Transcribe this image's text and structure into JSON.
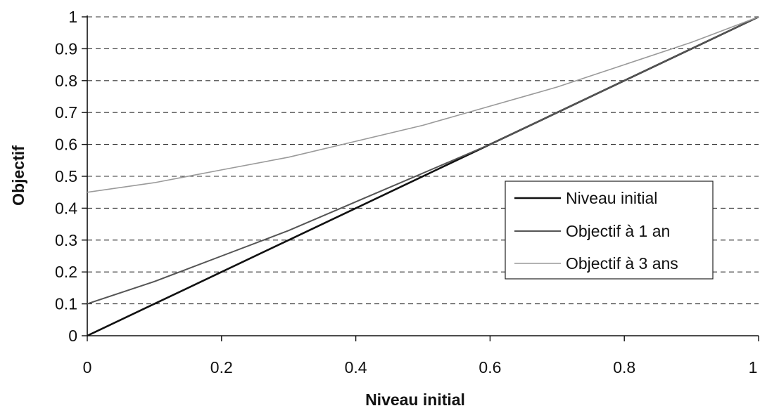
{
  "chart_data": {
    "type": "line",
    "title": "",
    "xlabel": "Niveau initial",
    "ylabel": "Objectif",
    "xlim": [
      0,
      1
    ],
    "ylim": [
      0,
      1
    ],
    "x_ticks": [
      0,
      0.2,
      0.4,
      0.6,
      0.8,
      1
    ],
    "x_tick_labels": [
      "0",
      "0.2",
      "0.4",
      "0.6",
      "0.8",
      "1"
    ],
    "y_ticks": [
      0,
      0.1,
      0.2,
      0.3,
      0.4,
      0.5,
      0.6,
      0.7,
      0.8,
      0.9,
      1
    ],
    "y_tick_labels": [
      "0",
      "0.1",
      "0.2",
      "0.3",
      "0.4",
      "0.5",
      "0.6",
      "0.7",
      "0.8",
      "0.9",
      "1"
    ],
    "grid": "horizontal-dashed",
    "legend_position": "right",
    "series": [
      {
        "name": "Niveau initial",
        "color": "#111111",
        "x": [
          0,
          0.1,
          0.2,
          0.3,
          0.4,
          0.5,
          0.6,
          0.7,
          0.8,
          0.9,
          1
        ],
        "values": [
          0,
          0.1,
          0.2,
          0.3,
          0.4,
          0.5,
          0.6,
          0.7,
          0.8,
          0.9,
          1
        ]
      },
      {
        "name": "Objectif à 1 an",
        "color": "#555555",
        "x": [
          0,
          0.1,
          0.2,
          0.3,
          0.4,
          0.5,
          0.6,
          0.7,
          0.8,
          0.9,
          1
        ],
        "values": [
          0.1,
          0.17,
          0.25,
          0.33,
          0.42,
          0.51,
          0.6,
          0.7,
          0.8,
          0.9,
          1
        ]
      },
      {
        "name": "Objectif à 3 ans",
        "color": "#9a9a9a",
        "x": [
          0,
          0.1,
          0.2,
          0.3,
          0.4,
          0.5,
          0.6,
          0.7,
          0.8,
          0.9,
          1
        ],
        "values": [
          0.45,
          0.48,
          0.52,
          0.56,
          0.61,
          0.66,
          0.72,
          0.78,
          0.85,
          0.92,
          1
        ]
      }
    ]
  }
}
